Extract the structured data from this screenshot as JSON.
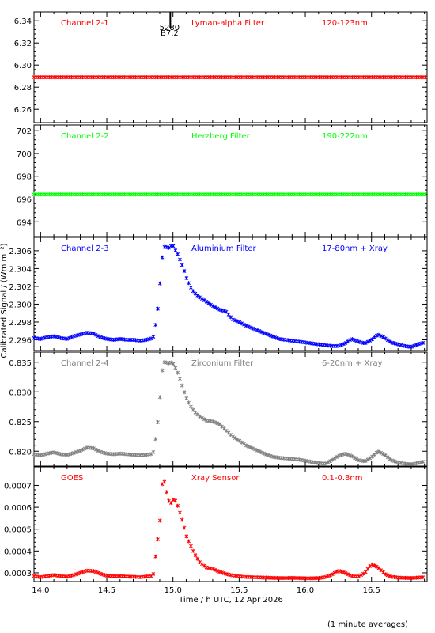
{
  "figure": {
    "ylabel": "Calibrated Signal / (Wm m⁻²)",
    "xlabel": "Time / h UTC, 12 Apr 2026",
    "footnote": "(1 minute averages)",
    "event_marker": {
      "x": 14.98,
      "label_top": "5280",
      "label_bottom": "B7.2"
    }
  },
  "chart_data": [
    {
      "type": "scatter",
      "panel": "Channel 2-1",
      "title_left": "Channel 2-1",
      "title_mid": "Lyman-alpha Filter",
      "title_right": "120-123nm",
      "color": "#ff0000",
      "xlim": [
        13.95,
        16.92
      ],
      "ylim": [
        6.248,
        6.348
      ],
      "yticks": [
        6.26,
        6.28,
        6.3,
        6.32,
        6.34
      ],
      "ytick_labels": [
        "6.26",
        "6.28",
        "6.30",
        "6.32",
        "6.34"
      ],
      "series": [
        {
          "x": [
            13.95,
            16.92
          ],
          "y": [
            6.289,
            6.289
          ]
        }
      ]
    },
    {
      "type": "scatter",
      "panel": "Channel 2-2",
      "title_left": "Channel 2-2",
      "title_mid": "Herzberg Filter",
      "title_right": "190-222nm",
      "color": "#00ff00",
      "xlim": [
        13.95,
        16.92
      ],
      "ylim": [
        692.7,
        702.5
      ],
      "yticks": [
        694,
        696,
        698,
        700,
        702
      ],
      "ytick_labels": [
        "694",
        "696",
        "698",
        "700",
        "702"
      ],
      "series": [
        {
          "x": [
            13.95,
            16.92
          ],
          "y": [
            696.4,
            696.4
          ]
        }
      ]
    },
    {
      "type": "scatter",
      "panel": "Channel 2-3",
      "title_left": "Channel 2-3",
      "title_mid": "Aluminium Filter",
      "title_right": "17-80nm + Xray",
      "color": "#0000ff",
      "xlim": [
        13.95,
        16.92
      ],
      "ylim": [
        2.2948,
        2.3075
      ],
      "yticks": [
        2.296,
        2.298,
        2.3,
        2.302,
        2.304,
        2.306
      ],
      "ytick_labels": [
        "2.296",
        "2.298",
        "2.300",
        "2.302",
        "2.304",
        "2.306"
      ],
      "series": [
        {
          "x": [
            13.95,
            14.0,
            14.05,
            14.1,
            14.15,
            14.2,
            14.25,
            14.3,
            14.35,
            14.4,
            14.45,
            14.5,
            14.55,
            14.6,
            14.65,
            14.7,
            14.75,
            14.8,
            14.85,
            14.88,
            14.9,
            14.92,
            14.94,
            14.96,
            14.98,
            15.0,
            15.02,
            15.04,
            15.06,
            15.08,
            15.1,
            15.13,
            15.16,
            15.2,
            15.25,
            15.3,
            15.35,
            15.4,
            15.45,
            15.5,
            15.55,
            15.6,
            15.65,
            15.7,
            15.75,
            15.8,
            15.85,
            15.9,
            15.95,
            16.0,
            16.05,
            16.1,
            16.15,
            16.2,
            16.25,
            16.3,
            16.35,
            16.4,
            16.45,
            16.5,
            16.55,
            16.6,
            16.65,
            16.7,
            16.75,
            16.8,
            16.85,
            16.9
          ],
          "y": [
            2.2962,
            2.2961,
            2.2963,
            2.2964,
            2.2962,
            2.2961,
            2.2964,
            2.2966,
            2.2968,
            2.2967,
            2.2963,
            2.2961,
            2.296,
            2.2961,
            2.296,
            2.296,
            2.2959,
            2.296,
            2.2962,
            2.2986,
            2.302,
            2.3055,
            2.3067,
            2.3062,
            2.3065,
            2.3066,
            2.306,
            2.3055,
            2.3047,
            2.304,
            2.303,
            2.302,
            2.3013,
            2.3008,
            2.3003,
            2.2998,
            2.2994,
            2.2992,
            2.2983,
            2.298,
            2.2976,
            2.2973,
            2.297,
            2.2967,
            2.2964,
            2.2961,
            2.296,
            2.2959,
            2.2958,
            2.2957,
            2.2956,
            2.2955,
            2.2954,
            2.2953,
            2.2953,
            2.2956,
            2.2961,
            2.2958,
            2.2956,
            2.296,
            2.2966,
            2.2962,
            2.2957,
            2.2955,
            2.2953,
            2.2952,
            2.2955,
            2.2957
          ]
        }
      ]
    },
    {
      "type": "scatter",
      "panel": "Channel 2-4",
      "title_left": "Channel 2-4",
      "title_mid": "Zirconium Filter",
      "title_right": "6-20nm + Xray",
      "color": "#808080",
      "xlim": [
        13.95,
        16.92
      ],
      "ylim": [
        0.8175,
        0.8367
      ],
      "yticks": [
        0.82,
        0.825,
        0.83,
        0.835
      ],
      "ytick_labels": [
        "0.820",
        "0.825",
        "0.830",
        "0.835"
      ],
      "series": [
        {
          "x": [
            13.95,
            14.0,
            14.05,
            14.1,
            14.15,
            14.2,
            14.25,
            14.3,
            14.35,
            14.4,
            14.45,
            14.5,
            14.55,
            14.6,
            14.65,
            14.7,
            14.75,
            14.8,
            14.85,
            14.88,
            14.9,
            14.92,
            14.94,
            14.96,
            14.98,
            15.0,
            15.02,
            15.04,
            15.06,
            15.08,
            15.1,
            15.13,
            15.16,
            15.2,
            15.25,
            15.3,
            15.35,
            15.4,
            15.45,
            15.5,
            15.55,
            15.6,
            15.65,
            15.7,
            15.75,
            15.8,
            15.85,
            15.9,
            15.95,
            16.0,
            16.05,
            16.1,
            16.15,
            16.2,
            16.25,
            16.3,
            16.35,
            16.4,
            16.45,
            16.5,
            16.55,
            16.6,
            16.65,
            16.7,
            16.75,
            16.8,
            16.85,
            16.9
          ],
          "y": [
            0.8195,
            0.8193,
            0.8196,
            0.8198,
            0.8195,
            0.8194,
            0.8197,
            0.8201,
            0.8206,
            0.8205,
            0.8199,
            0.8196,
            0.8195,
            0.8196,
            0.8195,
            0.8194,
            0.8193,
            0.8194,
            0.8196,
            0.8236,
            0.8286,
            0.834,
            0.8353,
            0.8347,
            0.835,
            0.8348,
            0.834,
            0.833,
            0.8317,
            0.8303,
            0.829,
            0.8277,
            0.8267,
            0.8259,
            0.8252,
            0.825,
            0.8246,
            0.8235,
            0.8225,
            0.8218,
            0.821,
            0.8205,
            0.82,
            0.8195,
            0.8191,
            0.8189,
            0.8188,
            0.8187,
            0.8186,
            0.8184,
            0.8182,
            0.818,
            0.8179,
            0.8185,
            0.8192,
            0.8196,
            0.8192,
            0.8185,
            0.8183,
            0.819,
            0.82,
            0.8194,
            0.8185,
            0.8181,
            0.8179,
            0.8178,
            0.818,
            0.8183
          ]
        }
      ]
    },
    {
      "type": "scatter",
      "panel": "GOES",
      "title_left": "GOES",
      "title_mid": "Xray Sensor",
      "title_right": "0.1-0.8nm",
      "color": "#ff0000",
      "xlim": [
        13.95,
        16.92
      ],
      "ylim": [
        0.00026,
        0.000785
      ],
      "yticks": [
        0.0003,
        0.0004,
        0.0005,
        0.0006,
        0.0007
      ],
      "ytick_labels": [
        "0.0003",
        "0.0004",
        "0.0005",
        "0.0006",
        "0.0007"
      ],
      "series": [
        {
          "x": [
            13.95,
            14.0,
            14.05,
            14.1,
            14.15,
            14.2,
            14.25,
            14.3,
            14.35,
            14.4,
            14.45,
            14.5,
            14.55,
            14.6,
            14.65,
            14.7,
            14.75,
            14.8,
            14.85,
            14.88,
            14.9,
            14.92,
            14.94,
            14.96,
            14.98,
            15.0,
            15.02,
            15.04,
            15.06,
            15.08,
            15.1,
            15.13,
            15.16,
            15.2,
            15.25,
            15.3,
            15.35,
            15.4,
            15.45,
            15.5,
            15.55,
            15.6,
            15.65,
            15.7,
            15.75,
            15.8,
            15.85,
            15.9,
            15.95,
            16.0,
            16.05,
            16.1,
            16.15,
            16.2,
            16.25,
            16.3,
            16.35,
            16.4,
            16.45,
            16.5,
            16.55,
            16.6,
            16.65,
            16.7,
            16.75,
            16.8,
            16.85,
            16.9
          ],
          "y": [
            0.000285,
            0.00028,
            0.000285,
            0.00029,
            0.000285,
            0.000282,
            0.00029,
            0.0003,
            0.00031,
            0.000308,
            0.000296,
            0.000287,
            0.000284,
            0.000285,
            0.000283,
            0.000282,
            0.00028,
            0.000283,
            0.000286,
            0.00043,
            0.00052,
            0.00072,
            0.000715,
            0.00064,
            0.000615,
            0.000635,
            0.00063,
            0.0006,
            0.00056,
            0.00052,
            0.00047,
            0.00043,
            0.00039,
            0.00035,
            0.000325,
            0.000318,
            0.000305,
            0.000295,
            0.000288,
            0.000284,
            0.000281,
            0.00028,
            0.000279,
            0.000278,
            0.000277,
            0.000276,
            0.000276,
            0.000277,
            0.000276,
            0.000275,
            0.000275,
            0.000276,
            0.00028,
            0.000292,
            0.00031,
            0.0003,
            0.000285,
            0.000282,
            0.0003,
            0.00034,
            0.000325,
            0.000295,
            0.000282,
            0.000278,
            0.000277,
            0.000276,
            0.000278,
            0.00028
          ]
        }
      ]
    }
  ],
  "xaxis": {
    "ticks": [
      14.0,
      14.5,
      15.0,
      15.5,
      16.0,
      16.5
    ],
    "tick_labels": [
      "14.0",
      "14.5",
      "15.0",
      "15.5",
      "16.0",
      "16.5"
    ]
  }
}
